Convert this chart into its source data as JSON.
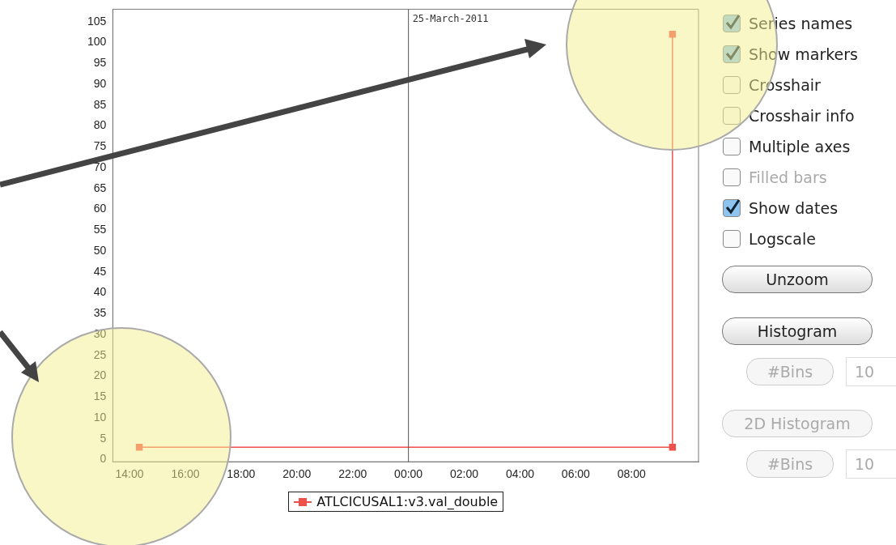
{
  "chart_data": [
    {
      "type": "step",
      "xlim": [
        "2011-03-24T13:24",
        "2011-03-25T10:24"
      ],
      "ylim": [
        -0.5,
        108
      ],
      "xticks": [
        {
          "value": "2011-03-24T14:00",
          "label": "14:00"
        },
        {
          "value": "2011-03-24T16:00",
          "label": "16:00"
        },
        {
          "value": "2011-03-24T18:00",
          "label": "18:00"
        },
        {
          "value": "2011-03-24T20:00",
          "label": "20:00"
        },
        {
          "value": "2011-03-24T22:00",
          "label": "22:00"
        },
        {
          "value": "2011-03-25T00:00",
          "label": "00:00"
        },
        {
          "value": "2011-03-25T02:00",
          "label": "02:00"
        },
        {
          "value": "2011-03-25T04:00",
          "label": "04:00"
        },
        {
          "value": "2011-03-25T06:00",
          "label": "06:00"
        },
        {
          "value": "2011-03-25T08:00",
          "label": "08:00"
        }
      ],
      "yticks": [
        0,
        5,
        10,
        15,
        20,
        25,
        30,
        35,
        40,
        45,
        50,
        55,
        60,
        65,
        70,
        75,
        80,
        85,
        90,
        95,
        100,
        105
      ],
      "series": [
        {
          "name": "ATLCICUSAL1:v3.val_double",
          "color": "#f0504a",
          "x": [
            "2011-03-24T14:21",
            "2011-03-25T09:28",
            "2011-03-25T09:28"
          ],
          "values": [
            3,
            3,
            102
          ]
        }
      ],
      "ref_lines": [
        {
          "axis": "x",
          "value": "2011-03-25T00:00",
          "label": "25-March-2011",
          "color": "#555555"
        }
      ],
      "marker": "square",
      "legend": "bottom",
      "grid": false
    },
    {
      "type": "other",
      "annotations": [
        "Series names",
        "Show markers",
        "Crosshair",
        "Crosshair info",
        "Multiple axes",
        "Filled bars",
        "Show dates",
        "Logscale",
        "Unzoom",
        "Histogram",
        "#Bins",
        "10",
        "2D Histogram",
        "#Bins",
        "10"
      ]
    }
  ]
}
